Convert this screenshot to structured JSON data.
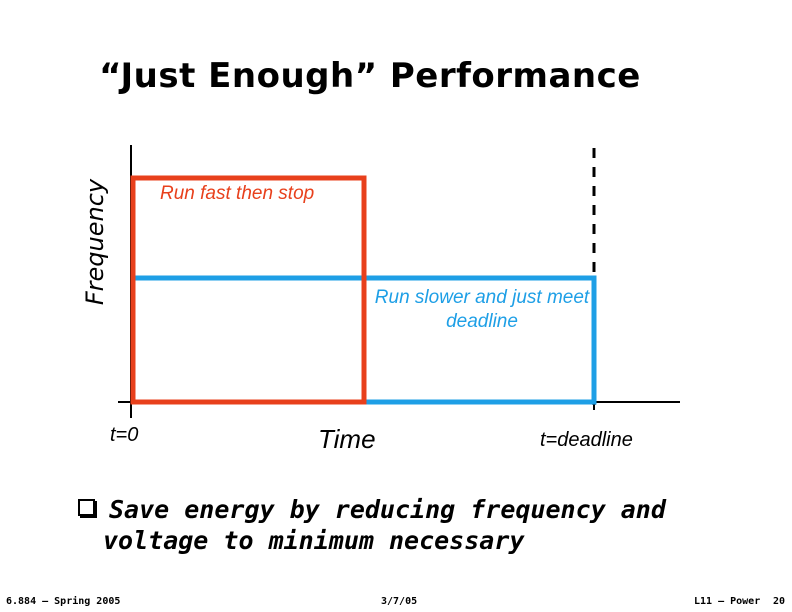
{
  "slide": {
    "title": "“Just Enough” Performance",
    "bullet": {
      "line1": "Save energy by reducing frequency and",
      "line2": "voltage to minimum necessary"
    },
    "footer": {
      "course": "6.884 – Spring 2005",
      "date": "3/7/05",
      "lecture": "L11 – Power",
      "page": "20"
    }
  },
  "diagram": {
    "y_axis_label": "Frequency",
    "x_axis_label": "Time",
    "x_ticks": [
      "t=0",
      "t=deadline"
    ],
    "fast_label": "Run fast then stop",
    "slow_label": "Run slower and just meet deadline",
    "colors": {
      "fast": "#e8401c",
      "slow": "#1e9fe6",
      "axis": "#000000"
    }
  }
}
